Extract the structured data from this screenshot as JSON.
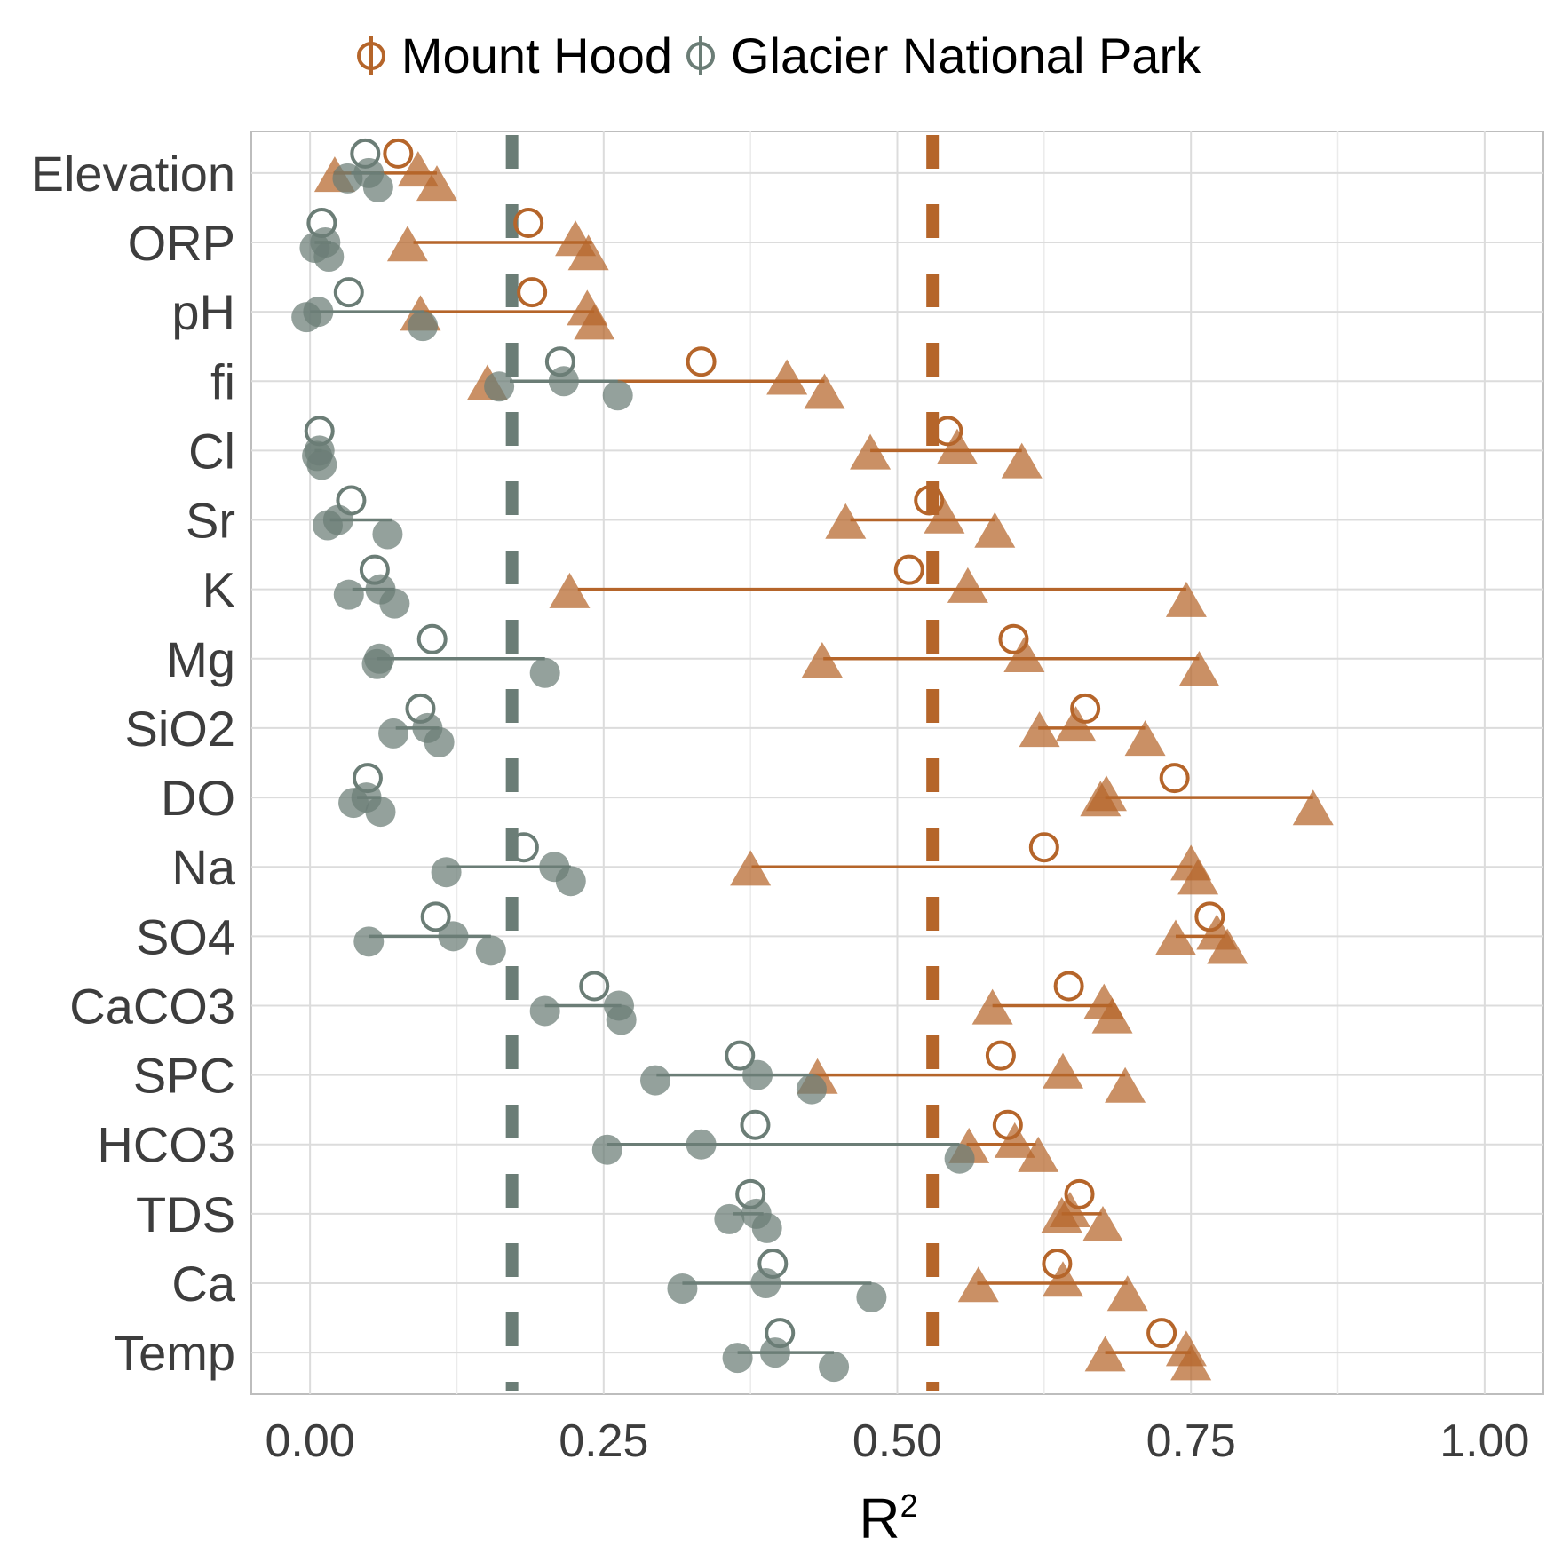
{
  "chart_data": {
    "type": "scatter",
    "xlabel": "R",
    "xlabel_superscript": "2",
    "xlim": [
      -0.05,
      1.05
    ],
    "x_ticks": [
      0.0,
      0.25,
      0.5,
      0.75,
      1.0
    ],
    "x_tick_labels": [
      "0.00",
      "0.25",
      "0.50",
      "0.75",
      "1.00"
    ],
    "categories": [
      "Elevation",
      "ORP",
      "pH",
      "fi",
      "Cl",
      "Sr",
      "K",
      "Mg",
      "SiO2",
      "DO",
      "Na",
      "SO4",
      "CaCO3",
      "SPC",
      "HCO3",
      "TDS",
      "Ca",
      "Temp"
    ],
    "legend_position": "top",
    "series": [
      {
        "name": "Mount Hood",
        "color": "#b5652a",
        "reference_line": 0.53,
        "means": [
          0.075,
          0.186,
          0.189,
          0.333,
          0.543,
          0.527,
          0.51,
          0.599,
          0.66,
          0.736,
          0.625,
          0.766,
          0.646,
          0.588,
          0.594,
          0.655,
          0.636,
          0.725
        ],
        "ranges": [
          [
            0.02,
            0.108
          ],
          [
            0.088,
            0.24
          ],
          [
            0.094,
            0.242
          ],
          [
            0.24,
            0.438
          ],
          [
            0.477,
            0.606
          ],
          [
            0.46,
            0.583
          ],
          [
            0.228,
            0.746
          ],
          [
            0.437,
            0.757
          ],
          [
            0.62,
            0.711
          ],
          [
            0.677,
            0.854
          ],
          [
            0.376,
            0.751
          ],
          [
            0.737,
            0.779
          ],
          [
            0.581,
            0.683
          ],
          [
            0.428,
            0.694
          ],
          [
            0.559,
            0.618
          ],
          [
            0.64,
            0.674
          ],
          [
            0.568,
            0.696
          ],
          [
            0.677,
            0.75
          ]
        ],
        "replicates": [
          [
            0.021,
            0.092,
            0.108
          ],
          [
            0.083,
            0.226,
            0.237
          ],
          [
            0.094,
            0.236,
            0.242
          ],
          [
            0.151,
            0.406,
            0.438
          ],
          [
            0.477,
            0.551,
            0.606
          ],
          [
            0.456,
            0.54,
            0.583
          ],
          [
            0.221,
            0.56,
            0.746
          ],
          [
            0.436,
            0.608,
            0.757
          ],
          [
            0.621,
            0.652,
            0.711
          ],
          [
            0.673,
            0.678,
            0.854
          ],
          [
            0.375,
            0.75,
            0.756
          ],
          [
            0.737,
            0.772,
            0.781
          ],
          [
            0.581,
            0.676,
            0.683
          ],
          [
            0.432,
            0.641,
            0.694
          ],
          [
            0.561,
            0.6,
            0.62
          ],
          [
            0.64,
            0.647,
            0.675
          ],
          [
            0.569,
            0.641,
            0.696
          ],
          [
            0.677,
            0.746,
            0.75
          ]
        ]
      },
      {
        "name": "Glacier National Park",
        "color": "#6b7d76",
        "reference_line": 0.172,
        "means": [
          0.047,
          0.01,
          0.033,
          0.213,
          0.008,
          0.035,
          0.055,
          0.104,
          0.094,
          0.049,
          0.182,
          0.107,
          0.242,
          0.366,
          0.379,
          0.375,
          0.394,
          0.4
        ],
        "ranges": [
          [
            0.035,
            0.06
          ],
          [
            0.004,
            0.018
          ],
          [
            0.0,
            0.097
          ],
          [
            0.17,
            0.262
          ],
          [
            0.004,
            0.01
          ],
          [
            0.017,
            0.07
          ],
          [
            0.036,
            0.072
          ],
          [
            0.057,
            0.2
          ],
          [
            0.073,
            0.11
          ],
          [
            0.04,
            0.06
          ],
          [
            0.116,
            0.222
          ],
          [
            0.05,
            0.154
          ],
          [
            0.2,
            0.265
          ],
          [
            0.295,
            0.428
          ],
          [
            0.253,
            0.553
          ],
          [
            0.36,
            0.386
          ],
          [
            0.317,
            0.478
          ],
          [
            0.364,
            0.446
          ]
        ],
        "replicates": [
          [
            0.032,
            0.05,
            0.058
          ],
          [
            0.004,
            0.013,
            0.016
          ],
          [
            -0.003,
            0.007,
            0.096
          ],
          [
            0.161,
            0.216,
            0.262
          ],
          [
            0.006,
            0.008,
            0.01
          ],
          [
            0.015,
            0.024,
            0.066
          ],
          [
            0.033,
            0.06,
            0.072
          ],
          [
            0.057,
            0.059,
            0.2
          ],
          [
            0.071,
            0.1,
            0.11
          ],
          [
            0.037,
            0.048,
            0.06
          ],
          [
            0.116,
            0.208,
            0.222
          ],
          [
            0.05,
            0.122,
            0.154
          ],
          [
            0.2,
            0.263,
            0.265
          ],
          [
            0.294,
            0.381,
            0.427
          ],
          [
            0.253,
            0.333,
            0.553
          ],
          [
            0.357,
            0.38,
            0.389
          ],
          [
            0.317,
            0.388,
            0.478
          ],
          [
            0.364,
            0.396,
            0.446
          ]
        ]
      }
    ]
  }
}
